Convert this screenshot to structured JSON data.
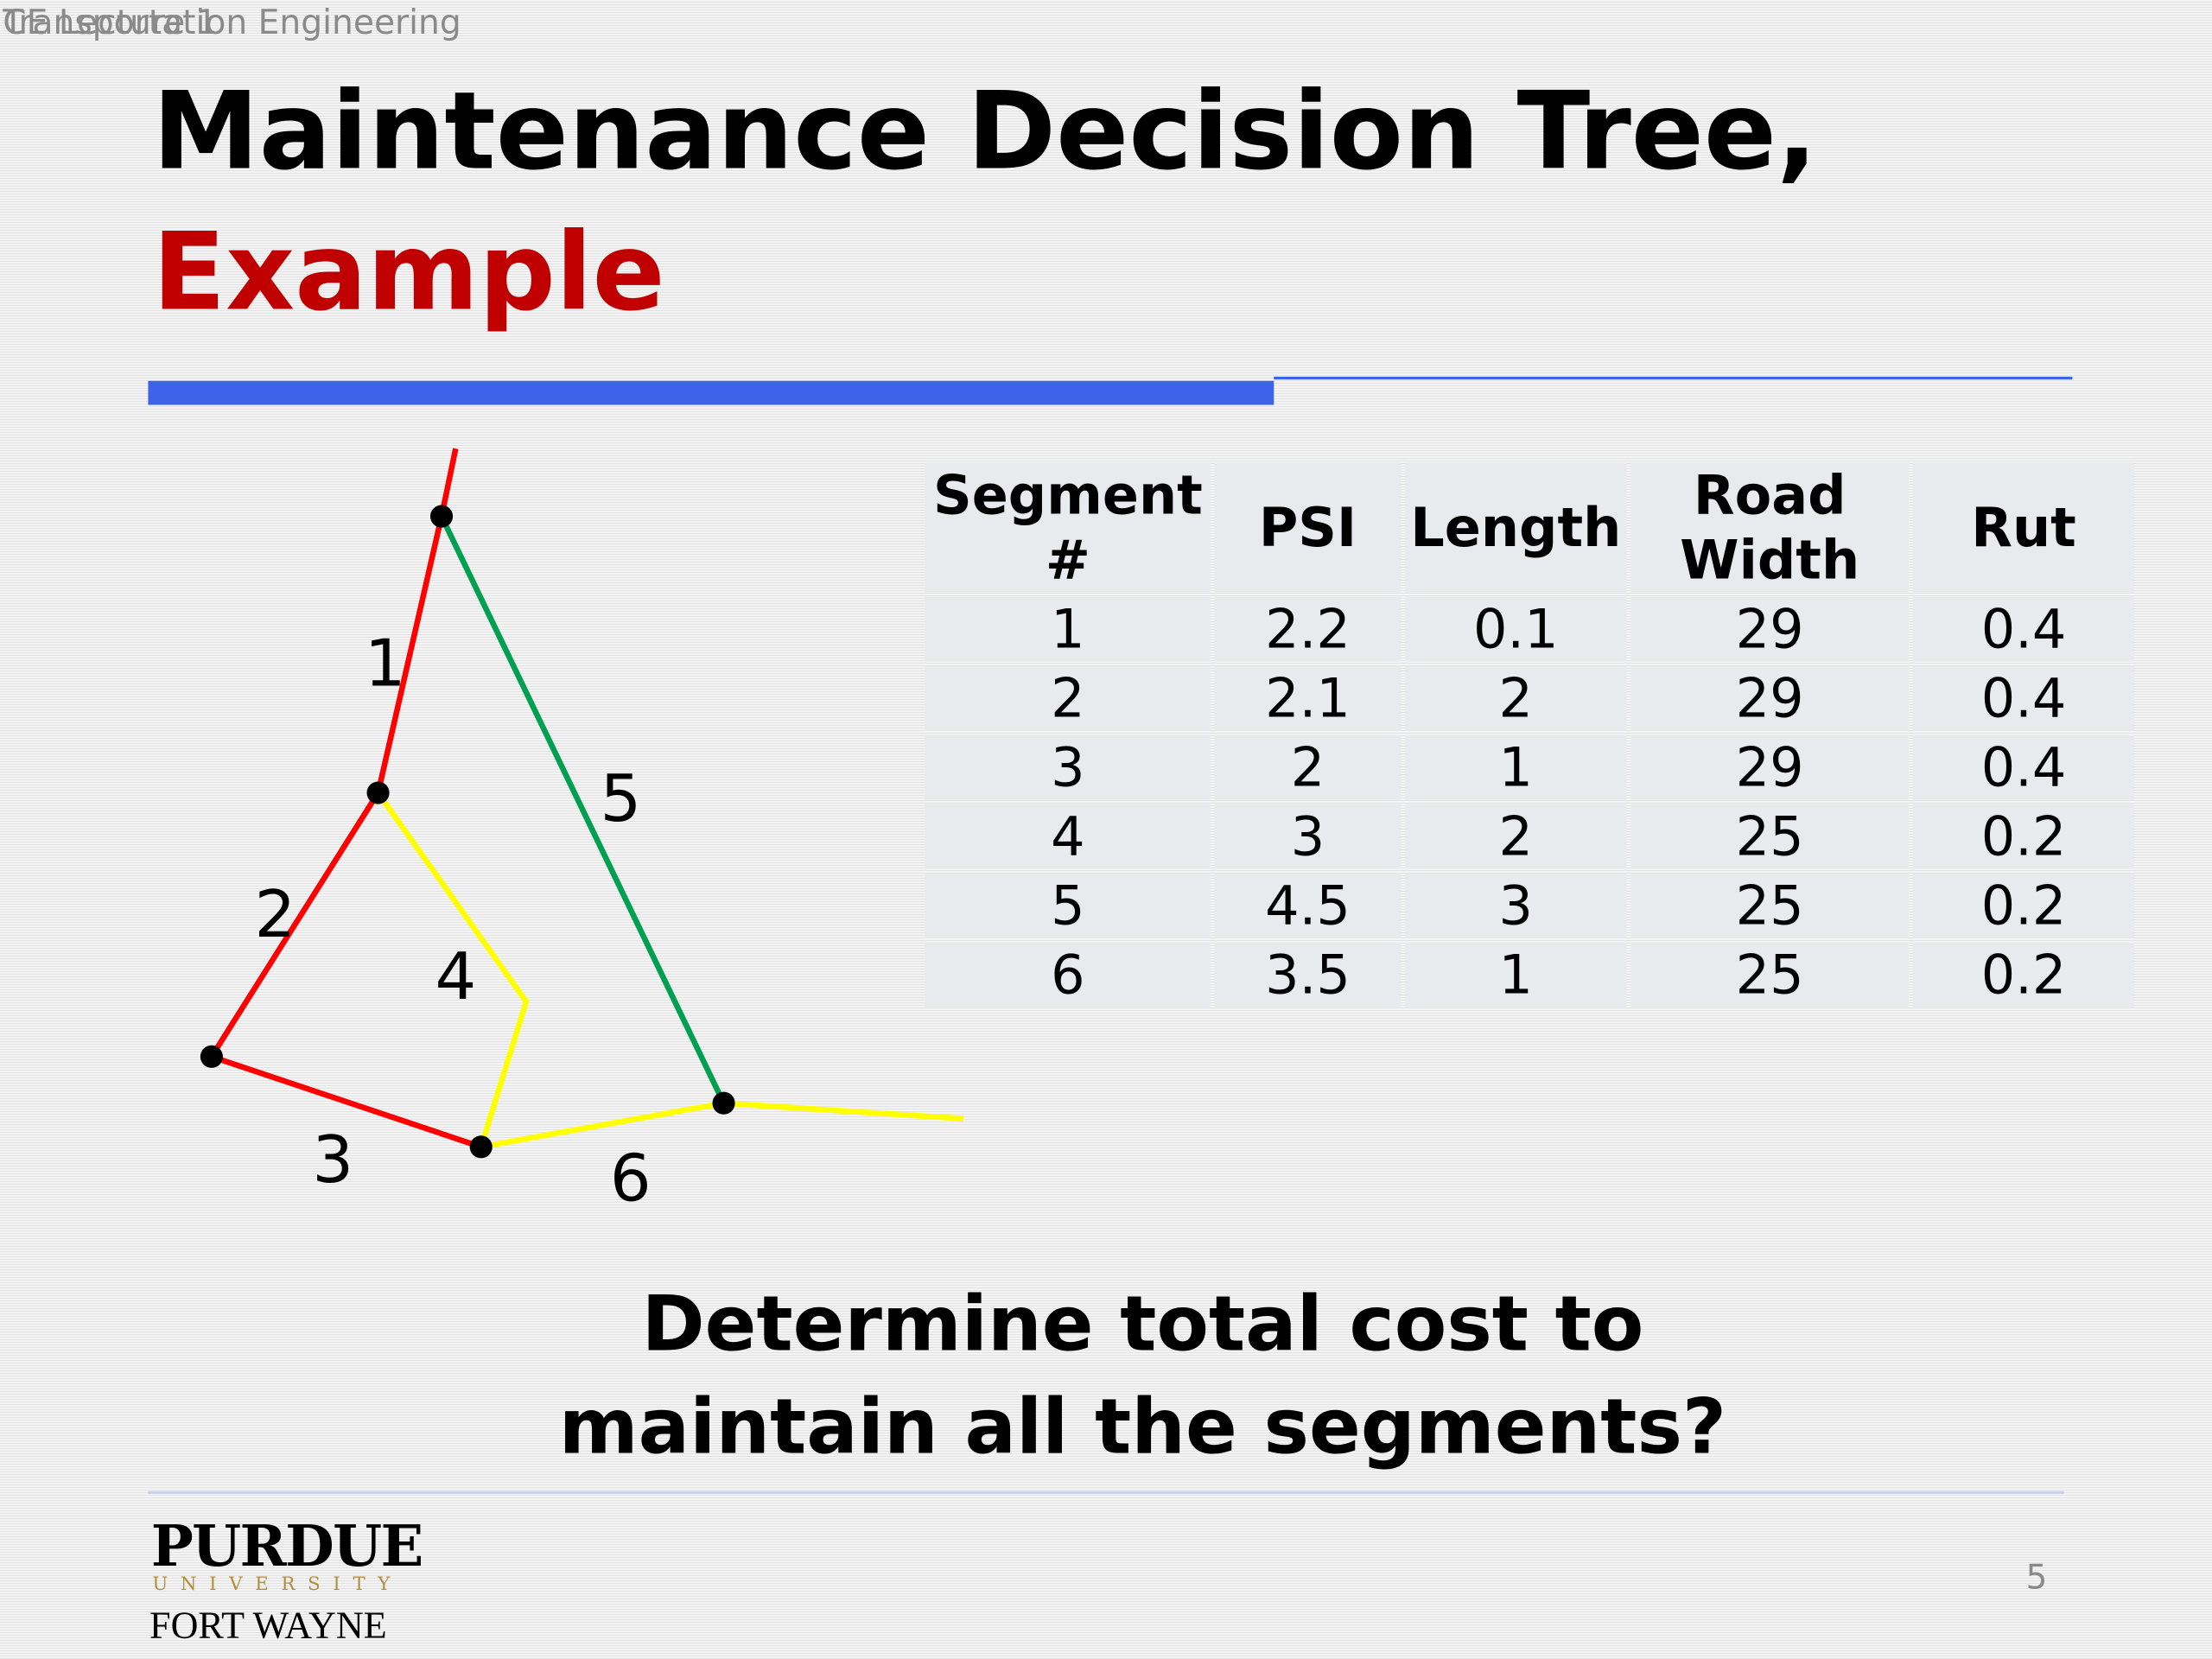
{
  "header": {
    "course": "CE Lecture 1",
    "subject": "Transportation Engineering"
  },
  "title": {
    "line1": "Maintenance Decision Tree,",
    "line2": "Example"
  },
  "diagram": {
    "segment_labels": [
      "1",
      "2",
      "3",
      "4",
      "5",
      "6"
    ]
  },
  "table": {
    "columns": [
      "Segment #",
      "PSI",
      "Length",
      "Road Width",
      "Rut"
    ],
    "rows": [
      [
        1,
        2.2,
        0.1,
        29,
        0.4
      ],
      [
        2,
        2.1,
        2,
        29,
        0.4
      ],
      [
        3,
        2,
        1,
        29,
        0.4
      ],
      [
        4,
        3,
        2,
        25,
        0.2
      ],
      [
        5,
        4.5,
        3,
        25,
        0.2
      ],
      [
        6,
        3.5,
        1,
        25,
        0.2
      ]
    ]
  },
  "question": {
    "line1": "Determine total cost to",
    "line2": "maintain all the segments?"
  },
  "footer": {
    "logo": {
      "name": "PURDUE",
      "sub": "UNIVERSITY",
      "campus": "FORT WAYNE"
    },
    "page_number": "5"
  }
}
